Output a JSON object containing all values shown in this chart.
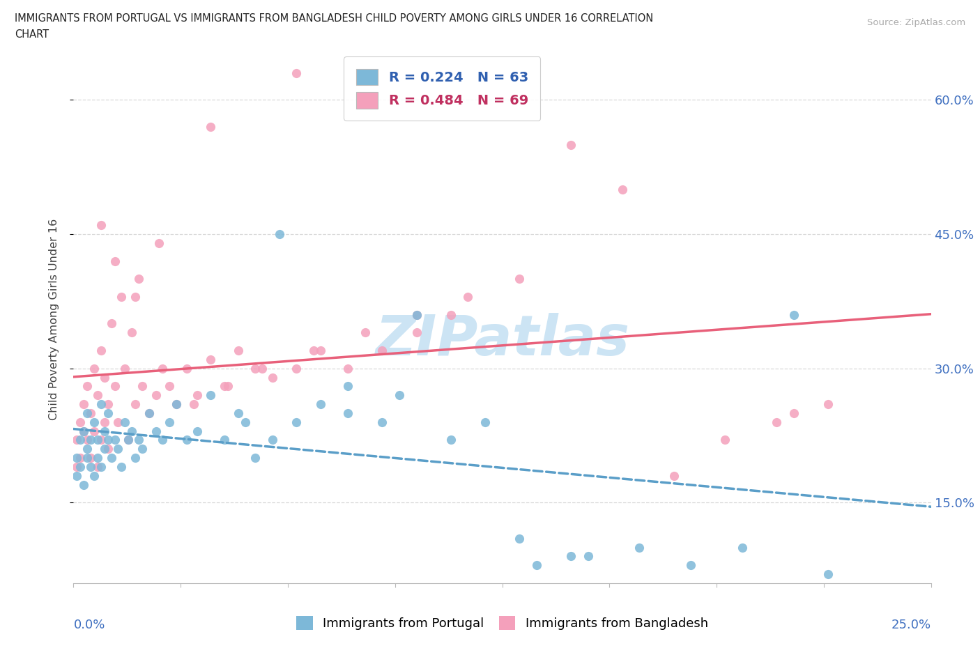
{
  "title_line1": "IMMIGRANTS FROM PORTUGAL VS IMMIGRANTS FROM BANGLADESH CHILD POVERTY AMONG GIRLS UNDER 16 CORRELATION",
  "title_line2": "CHART",
  "source": "Source: ZipAtlas.com",
  "ylabel": "Child Poverty Among Girls Under 16",
  "series1_label": "Immigrants from Portugal",
  "series2_label": "Immigrants from Bangladesh",
  "x_range": [
    0.0,
    0.25
  ],
  "y_range": [
    0.06,
    0.65
  ],
  "x_ticks": [
    0.0,
    0.03125,
    0.0625,
    0.09375,
    0.125,
    0.15625,
    0.1875,
    0.21875,
    0.25
  ],
  "y_ticks": [
    0.15,
    0.3,
    0.45,
    0.6
  ],
  "y_tick_labels": [
    "15.0%",
    "30.0%",
    "45.0%",
    "60.0%"
  ],
  "portugal_color": "#7db8d8",
  "bangladesh_color": "#f4a0bb",
  "portugal_line_color": "#5a9ec8",
  "bangladesh_line_color": "#e8607a",
  "legend_text_color_portugal": "#3060b0",
  "legend_text_color_bangladesh": "#c03060",
  "legend_R_portugal": "0.224",
  "legend_N_portugal": "63",
  "legend_R_bangladesh": "0.484",
  "legend_N_bangladesh": "69",
  "watermark": "ZIPatlas",
  "watermark_color": "#cce4f4",
  "grid_color": "#d8d8d8",
  "portugal_x": [
    0.001,
    0.001,
    0.002,
    0.002,
    0.003,
    0.003,
    0.004,
    0.004,
    0.004,
    0.005,
    0.005,
    0.006,
    0.006,
    0.007,
    0.007,
    0.008,
    0.008,
    0.009,
    0.009,
    0.01,
    0.01,
    0.011,
    0.012,
    0.013,
    0.014,
    0.015,
    0.016,
    0.017,
    0.018,
    0.019,
    0.02,
    0.022,
    0.024,
    0.026,
    0.028,
    0.03,
    0.033,
    0.036,
    0.04,
    0.044,
    0.048,
    0.053,
    0.058,
    0.065,
    0.072,
    0.08,
    0.09,
    0.1,
    0.11,
    0.12,
    0.135,
    0.15,
    0.165,
    0.18,
    0.195,
    0.21,
    0.05,
    0.06,
    0.13,
    0.145,
    0.08,
    0.095,
    0.22
  ],
  "portugal_y": [
    0.2,
    0.18,
    0.22,
    0.19,
    0.23,
    0.17,
    0.21,
    0.25,
    0.2,
    0.22,
    0.19,
    0.24,
    0.18,
    0.22,
    0.2,
    0.26,
    0.19,
    0.23,
    0.21,
    0.22,
    0.25,
    0.2,
    0.22,
    0.21,
    0.19,
    0.24,
    0.22,
    0.23,
    0.2,
    0.22,
    0.21,
    0.25,
    0.23,
    0.22,
    0.24,
    0.26,
    0.22,
    0.23,
    0.27,
    0.22,
    0.25,
    0.2,
    0.22,
    0.24,
    0.26,
    0.25,
    0.24,
    0.36,
    0.22,
    0.24,
    0.08,
    0.09,
    0.1,
    0.08,
    0.1,
    0.36,
    0.24,
    0.45,
    0.11,
    0.09,
    0.28,
    0.27,
    0.07
  ],
  "bangladesh_x": [
    0.001,
    0.001,
    0.002,
    0.002,
    0.003,
    0.003,
    0.004,
    0.004,
    0.005,
    0.005,
    0.006,
    0.006,
    0.007,
    0.007,
    0.008,
    0.008,
    0.009,
    0.009,
    0.01,
    0.01,
    0.011,
    0.012,
    0.013,
    0.014,
    0.015,
    0.016,
    0.017,
    0.018,
    0.019,
    0.02,
    0.022,
    0.024,
    0.026,
    0.028,
    0.03,
    0.033,
    0.036,
    0.04,
    0.044,
    0.048,
    0.053,
    0.058,
    0.065,
    0.072,
    0.08,
    0.09,
    0.1,
    0.11,
    0.008,
    0.012,
    0.018,
    0.025,
    0.035,
    0.045,
    0.055,
    0.07,
    0.085,
    0.1,
    0.115,
    0.13,
    0.145,
    0.16,
    0.175,
    0.19,
    0.205,
    0.22,
    0.04,
    0.065,
    0.21
  ],
  "bangladesh_y": [
    0.22,
    0.19,
    0.24,
    0.2,
    0.26,
    0.23,
    0.22,
    0.28,
    0.2,
    0.25,
    0.23,
    0.3,
    0.19,
    0.27,
    0.22,
    0.32,
    0.24,
    0.29,
    0.21,
    0.26,
    0.35,
    0.28,
    0.24,
    0.38,
    0.3,
    0.22,
    0.34,
    0.26,
    0.4,
    0.28,
    0.25,
    0.27,
    0.3,
    0.28,
    0.26,
    0.3,
    0.27,
    0.31,
    0.28,
    0.32,
    0.3,
    0.29,
    0.3,
    0.32,
    0.3,
    0.32,
    0.34,
    0.36,
    0.46,
    0.42,
    0.38,
    0.44,
    0.26,
    0.28,
    0.3,
    0.32,
    0.34,
    0.36,
    0.38,
    0.4,
    0.55,
    0.5,
    0.18,
    0.22,
    0.24,
    0.26,
    0.57,
    0.63,
    0.25
  ]
}
